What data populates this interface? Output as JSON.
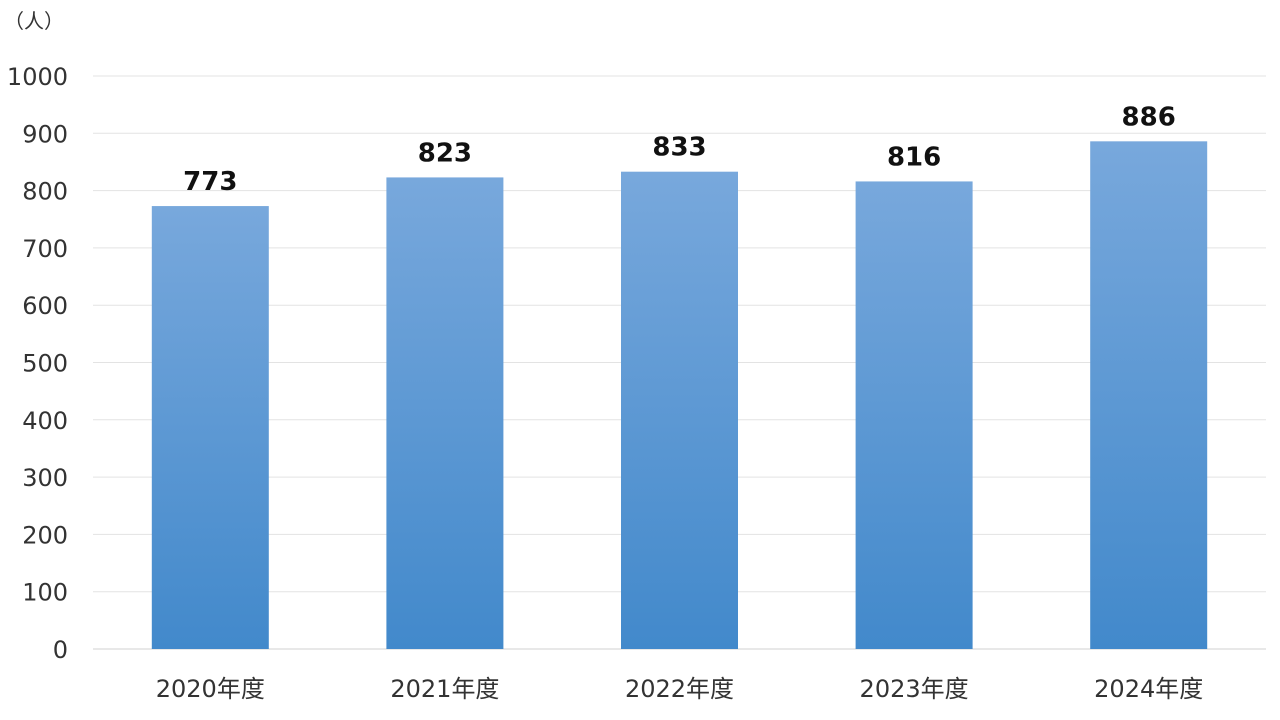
{
  "chart_data": {
    "type": "bar",
    "title": "",
    "xlabel": "",
    "ylabel": "",
    "unit_label": "（人）",
    "categories": [
      "2020年度",
      "2021年度",
      "2022年度",
      "2023年度",
      "2024年度"
    ],
    "values": [
      773,
      823,
      833,
      816,
      886
    ],
    "ylim": [
      0,
      1000
    ],
    "yticks": [
      0,
      100,
      200,
      300,
      400,
      500,
      600,
      700,
      800,
      900,
      1000
    ],
    "grid": true,
    "legend": "none",
    "colors": {
      "bar_top": "#78a8dc",
      "bar_bottom": "#4289cb"
    }
  }
}
